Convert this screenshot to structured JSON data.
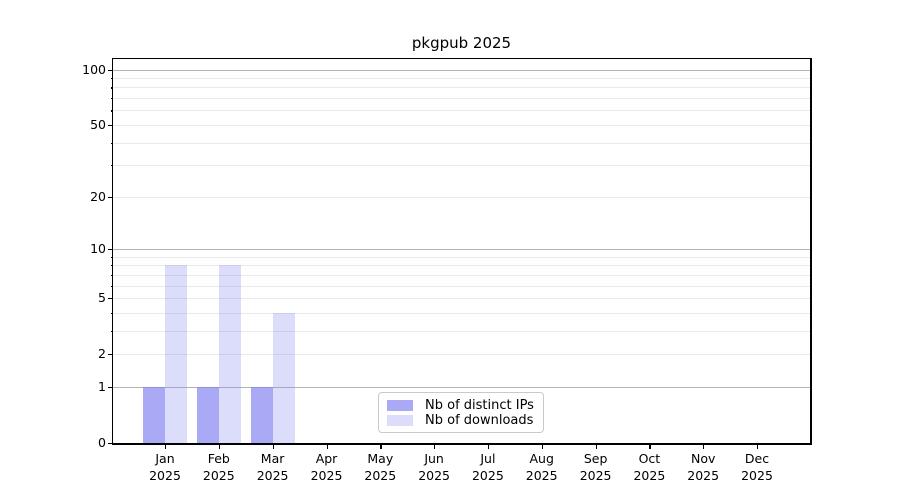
{
  "title": "pkgpub 2025",
  "chart_data": {
    "type": "bar",
    "categories": [
      "Jan 2025",
      "Feb 2025",
      "Mar 2025",
      "Apr 2025",
      "May 2025",
      "Jun 2025",
      "Jul 2025",
      "Aug 2025",
      "Sep 2025",
      "Oct 2025",
      "Nov 2025",
      "Dec 2025"
    ],
    "series": [
      {
        "name": "Nb of distinct IPs",
        "values": [
          1,
          1,
          1,
          0,
          0,
          0,
          0,
          0,
          0,
          0,
          0,
          0
        ],
        "color": "#a9a9f5",
        "base_rgb": "125,125,240",
        "alpha": 0.66
      },
      {
        "name": "Nb of downloads",
        "values": [
          8,
          8,
          4,
          0,
          0,
          0,
          0,
          0,
          0,
          0,
          0,
          0
        ],
        "color": "#dcdcf8",
        "base_rgb": "125,125,240",
        "alpha": 0.27
      }
    ],
    "title": "pkgpub 2025",
    "xlabel": "",
    "ylabel": "",
    "yscale": "log1p",
    "ylim": [
      0,
      115
    ],
    "y_tick_labels": [
      0,
      1,
      2,
      5,
      10,
      20,
      50,
      100
    ],
    "y_major_gridlines": [
      1,
      10,
      100
    ],
    "y_minor_gridlines": [
      2,
      3,
      4,
      5,
      6,
      7,
      8,
      9,
      20,
      30,
      40,
      50,
      60,
      70,
      80,
      90
    ],
    "grid": true,
    "legend_position": "lower center",
    "colors": {
      "major_grid": "#b4b4b4",
      "minor_grid": "#e9e9e9",
      "spine": "#000000",
      "background": "#ffffff"
    }
  }
}
